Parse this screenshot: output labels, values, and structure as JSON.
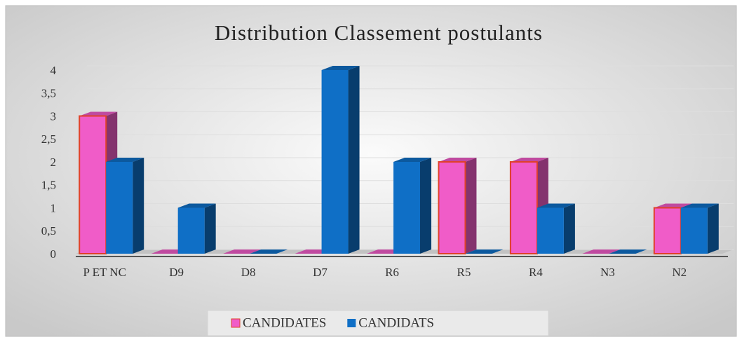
{
  "chart_data": {
    "type": "bar",
    "title": "Distribution Classement postulants",
    "categories": [
      "P ET NC",
      "D9",
      "D8",
      "D7",
      "R6",
      "R5",
      "R4",
      "N3",
      "N2"
    ],
    "series": [
      {
        "name": "CANDIDATES",
        "color": "#f05cc8",
        "values": [
          3,
          0,
          0,
          0,
          0,
          2,
          2,
          0,
          1
        ]
      },
      {
        "name": "CANDIDATS",
        "color": "#0f6fc6",
        "values": [
          2,
          1,
          0,
          4,
          2,
          0,
          1,
          0,
          1
        ]
      }
    ],
    "ylim": [
      0,
      4
    ],
    "yticks": [
      0,
      {
        "value": 0.5,
        "label": "0,5"
      },
      1,
      {
        "value": 1.5,
        "label": "1,5"
      },
      2,
      {
        "value": 2.5,
        "label": "2,5"
      },
      3,
      {
        "value": 3.5,
        "label": "3,5"
      },
      4
    ],
    "grid": true,
    "legend": "bottom"
  }
}
